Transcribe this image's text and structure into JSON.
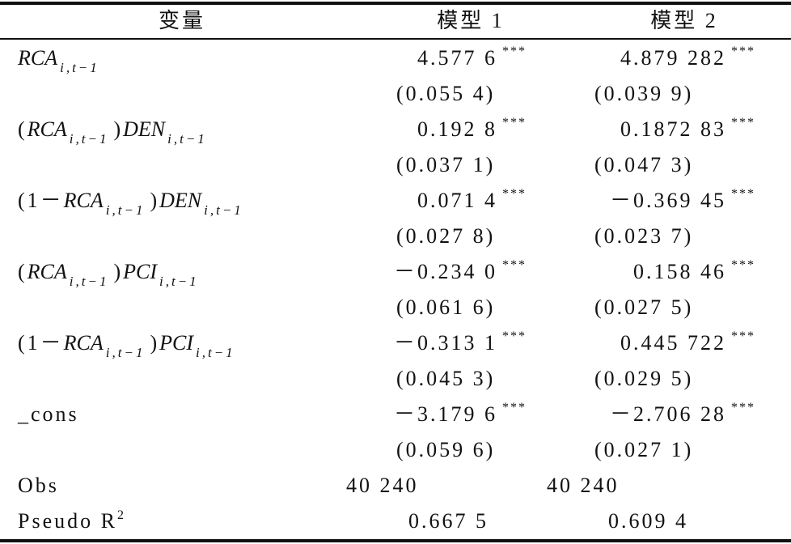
{
  "header": [
    "变量",
    "模型 1",
    "模型 2"
  ],
  "variables": [
    {
      "label": [
        {
          "text": "RCA",
          "style": "italic"
        },
        {
          "text": "i,t−1",
          "style": "sub"
        }
      ],
      "model1": {
        "coef": "4.577 6",
        "stars": "***",
        "se": "(0.055 4)"
      },
      "model2": {
        "coef": "4.879 282",
        "stars": "***",
        "se": "(0.039 9)"
      }
    },
    {
      "label": [
        {
          "text": "(",
          "style": "normal"
        },
        {
          "text": "RCA",
          "style": "italic"
        },
        {
          "text": "i,t−1",
          "style": "sub"
        },
        {
          "text": ")",
          "style": "normal"
        },
        {
          "text": "DEN",
          "style": "italic"
        },
        {
          "text": "i,t−1",
          "style": "sub"
        }
      ],
      "model1": {
        "coef": "0.192 8",
        "stars": "***",
        "se": "(0.037 1)"
      },
      "model2": {
        "coef": "0.1872 83",
        "stars": "***",
        "se": "(0.047 3)"
      }
    },
    {
      "label": [
        {
          "text": "(1－",
          "style": "normal"
        },
        {
          "text": "RCA",
          "style": "italic"
        },
        {
          "text": "i,t−1",
          "style": "sub"
        },
        {
          "text": ")",
          "style": "normal"
        },
        {
          "text": "DEN",
          "style": "italic"
        },
        {
          "text": "i,t−1",
          "style": "sub"
        }
      ],
      "model1": {
        "coef": "0.071 4",
        "stars": "***",
        "se": "(0.027 8)"
      },
      "model2": {
        "coef": "－0.369 45",
        "stars": "***",
        "se": "(0.023 7)"
      }
    },
    {
      "label": [
        {
          "text": "(",
          "style": "normal"
        },
        {
          "text": "RCA",
          "style": "italic"
        },
        {
          "text": "i,t−1",
          "style": "sub"
        },
        {
          "text": ")",
          "style": "normal"
        },
        {
          "text": "PCI",
          "style": "italic"
        },
        {
          "text": "i,t−1",
          "style": "sub"
        }
      ],
      "model1": {
        "coef": "－0.234 0",
        "stars": "***",
        "se": "(0.061 6)"
      },
      "model2": {
        "coef": "0.158 46",
        "stars": "***",
        "se": "(0.027 5)"
      }
    },
    {
      "label": [
        {
          "text": "(1－",
          "style": "normal"
        },
        {
          "text": "RCA",
          "style": "italic"
        },
        {
          "text": "i,t−1",
          "style": "sub"
        },
        {
          "text": ")",
          "style": "normal"
        },
        {
          "text": "PCI",
          "style": "italic"
        },
        {
          "text": "i,t−1",
          "style": "sub"
        }
      ],
      "model1": {
        "coef": "－0.313 1",
        "stars": "***",
        "se": "(0.045 3)"
      },
      "model2": {
        "coef": "0.445 722",
        "stars": "***",
        "se": "(0.029 5)"
      }
    },
    {
      "label": [
        {
          "text": "_cons",
          "style": "normal"
        }
      ],
      "model1": {
        "coef": "－3.179 6",
        "stars": "***",
        "se": "(0.059 6)"
      },
      "model2": {
        "coef": "－2.706 28",
        "stars": "***",
        "se": "(0.027 1)"
      }
    }
  ],
  "obs": {
    "label": "Obs",
    "model1": "40 240",
    "model2": "40 240"
  },
  "r2": {
    "label": "Pseudo R",
    "sup": "2",
    "model1": "0.667 5",
    "model2": "0.609 4"
  }
}
